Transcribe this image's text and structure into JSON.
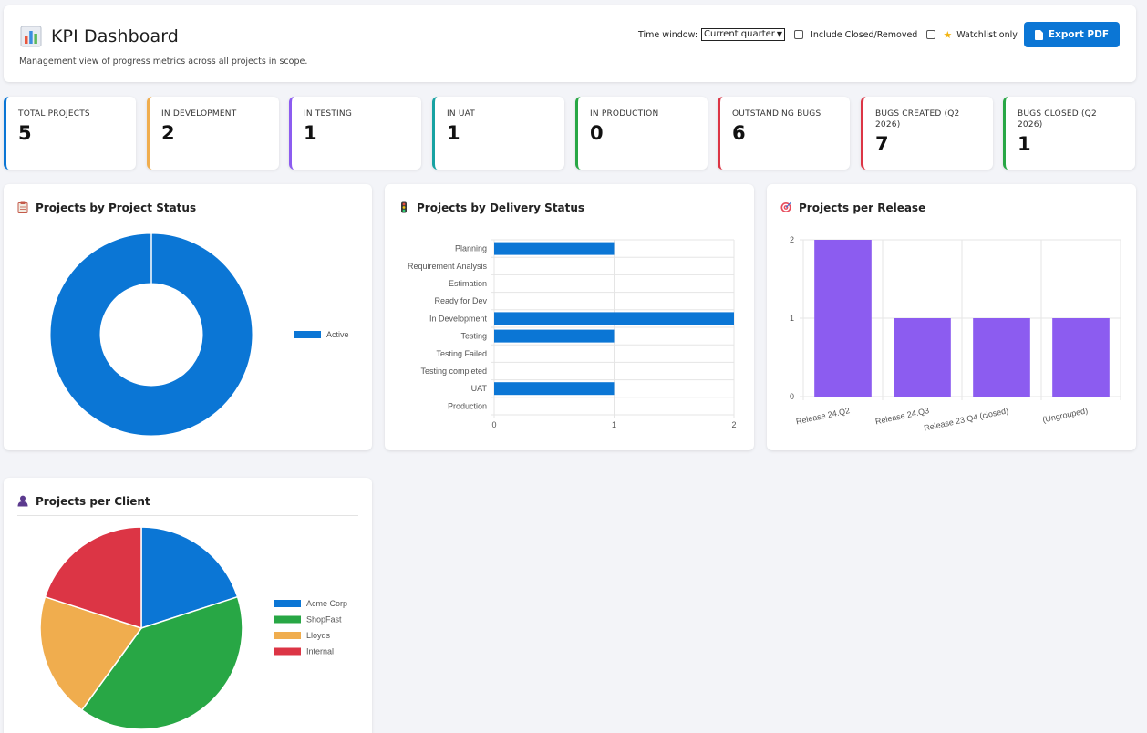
{
  "header": {
    "title": "KPI Dashboard",
    "subtitle": "Management view of progress metrics across all projects in scope.",
    "time_window_label": "Time window:",
    "time_window_value": "Current quarter",
    "include_closed_label": "Include Closed/Removed",
    "watchlist_label": "Watchlist only",
    "export_label": "Export PDF"
  },
  "kpis": [
    {
      "label": "TOTAL PROJECTS",
      "value": "5",
      "color": "#0b76d5"
    },
    {
      "label": "IN DEVELOPMENT",
      "value": "2",
      "color": "#f0ad4e"
    },
    {
      "label": "IN TESTING",
      "value": "1",
      "color": "#8c5cf0"
    },
    {
      "label": "IN UAT",
      "value": "1",
      "color": "#17a2a2"
    },
    {
      "label": "IN PRODUCTION",
      "value": "0",
      "color": "#28a745"
    },
    {
      "label": "OUTSTANDING BUGS",
      "value": "6",
      "color": "#dc3545"
    },
    {
      "label": "BUGS CREATED (Q2 2026)",
      "value": "7",
      "color": "#dc3545"
    },
    {
      "label": "BUGS CLOSED (Q2 2026)",
      "value": "1",
      "color": "#28a745"
    }
  ],
  "panels": {
    "project_status": {
      "title": "Projects by Project Status",
      "icon": "clipboard-icon"
    },
    "delivery_status": {
      "title": "Projects by Delivery Status",
      "icon": "traffic-light-icon"
    },
    "per_release": {
      "title": "Projects per Release",
      "icon": "target-icon"
    },
    "per_client": {
      "title": "Projects per Client",
      "icon": "person-icon"
    }
  },
  "chart_data": [
    {
      "type": "pie",
      "categories": [
        "Active"
      ],
      "values": [
        5
      ],
      "colors": [
        "#0b76d5"
      ],
      "donut": true,
      "legend": "right"
    },
    {
      "type": "bar",
      "orientation": "horizontal",
      "categories": [
        "Planning",
        "Requirement Analysis",
        "Estimation",
        "Ready for Dev",
        "In Development",
        "Testing",
        "Testing Failed",
        "Testing completed",
        "UAT",
        "Production"
      ],
      "values": [
        1,
        0,
        0,
        0,
        2,
        1,
        0,
        0,
        1,
        0
      ],
      "xticks": [
        "0",
        "1",
        "2"
      ],
      "xlim": [
        0,
        2
      ],
      "color": "#0b76d5",
      "grid": true
    },
    {
      "type": "bar",
      "categories": [
        "Release 24.Q2",
        "Release 24.Q3",
        "Release 23.Q4 (closed)",
        "(Ungrouped)"
      ],
      "values": [
        2,
        1,
        1,
        1
      ],
      "yticks": [
        "0",
        "1",
        "2"
      ],
      "ylim": [
        0,
        2
      ],
      "color": "#8c5cf0",
      "grid": true
    },
    {
      "type": "pie",
      "categories": [
        "Acme Corp",
        "ShopFast",
        "Lloyds",
        "Internal"
      ],
      "values": [
        1,
        2,
        1,
        1
      ],
      "colors": [
        "#0b76d5",
        "#28a745",
        "#f0ad4e",
        "#dc3545"
      ],
      "legend": "right"
    }
  ]
}
